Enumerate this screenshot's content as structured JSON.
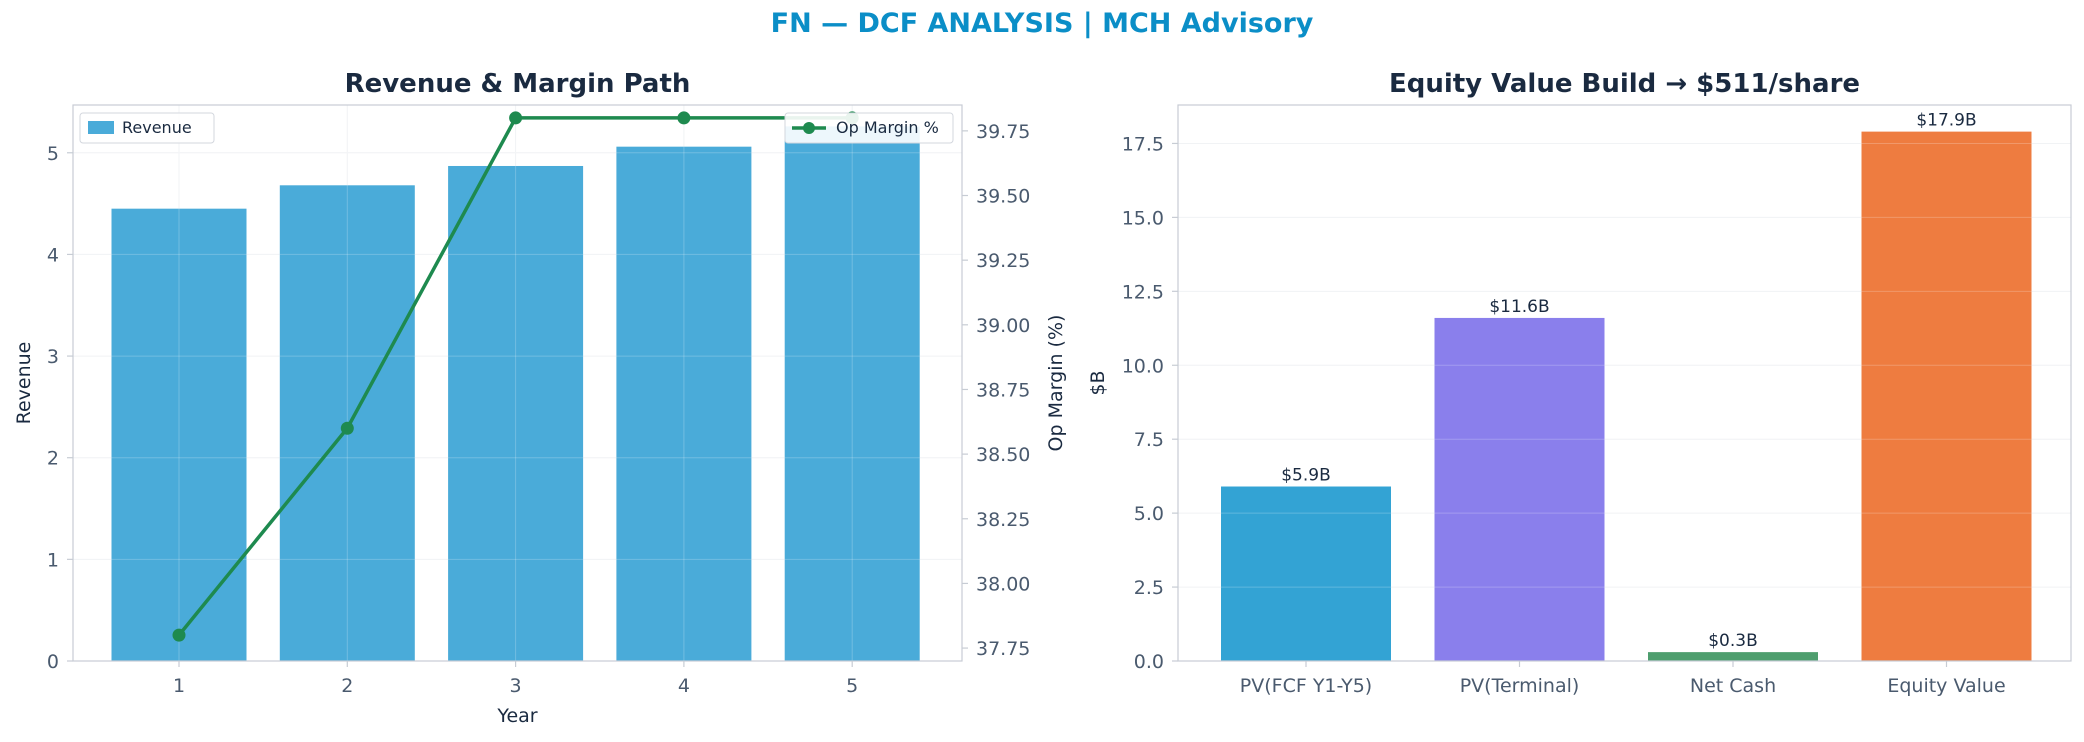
{
  "suptitle": "FN — DCF ANALYSIS | MCH Advisory",
  "colors": {
    "revenue_bar": "#4aabd9",
    "margin_line": "#1e8a4f",
    "equity_bars": [
      "#33a3d4",
      "#8a7fec",
      "#4e9e6e",
      "#ee7c40"
    ],
    "title": "#1a2a40",
    "tick": "#4a5a6e",
    "axis": "#c7ccd4",
    "grid": "#eef0f3"
  },
  "chart_data": [
    {
      "type": "bar",
      "title": "Revenue & Margin Path",
      "xlabel": "Year",
      "ylabel": "Revenue",
      "y2label": "Op Margin (%)",
      "categories": [
        "1",
        "2",
        "3",
        "4",
        "5"
      ],
      "series": [
        {
          "name": "Revenue",
          "type": "bar",
          "axis": "left",
          "values": [
            4.45,
            4.68,
            4.87,
            5.06,
            5.26
          ]
        },
        {
          "name": "Op Margin %",
          "type": "line",
          "axis": "right",
          "values": [
            37.8,
            38.6,
            39.8,
            39.8,
            39.8
          ]
        }
      ],
      "ylim": [
        0,
        5.47
      ],
      "yticks": [
        "0",
        "1",
        "2",
        "3",
        "4",
        "5"
      ],
      "y2lim": [
        37.7,
        39.85
      ],
      "y2ticks": [
        "37.75",
        "38.00",
        "38.25",
        "38.50",
        "38.75",
        "39.00",
        "39.25",
        "39.50",
        "39.75"
      ],
      "grid": true,
      "legend": {
        "left": "upper left",
        "right": "upper right"
      }
    },
    {
      "type": "bar",
      "title": "Equity Value Build → $511/share",
      "xlabel": "",
      "ylabel": "$B",
      "categories": [
        "PV(FCF Y1-Y5)",
        "PV(Terminal)",
        "Net Cash",
        "Equity Value"
      ],
      "values": [
        5.9,
        11.6,
        0.3,
        17.9
      ],
      "data_labels": [
        "$5.9B",
        "$11.6B",
        "$0.3B",
        "$17.9B"
      ],
      "ylim": [
        0,
        18.8
      ],
      "yticks": [
        "0.0",
        "2.5",
        "5.0",
        "7.5",
        "10.0",
        "12.5",
        "15.0",
        "17.5"
      ],
      "grid": true
    }
  ]
}
